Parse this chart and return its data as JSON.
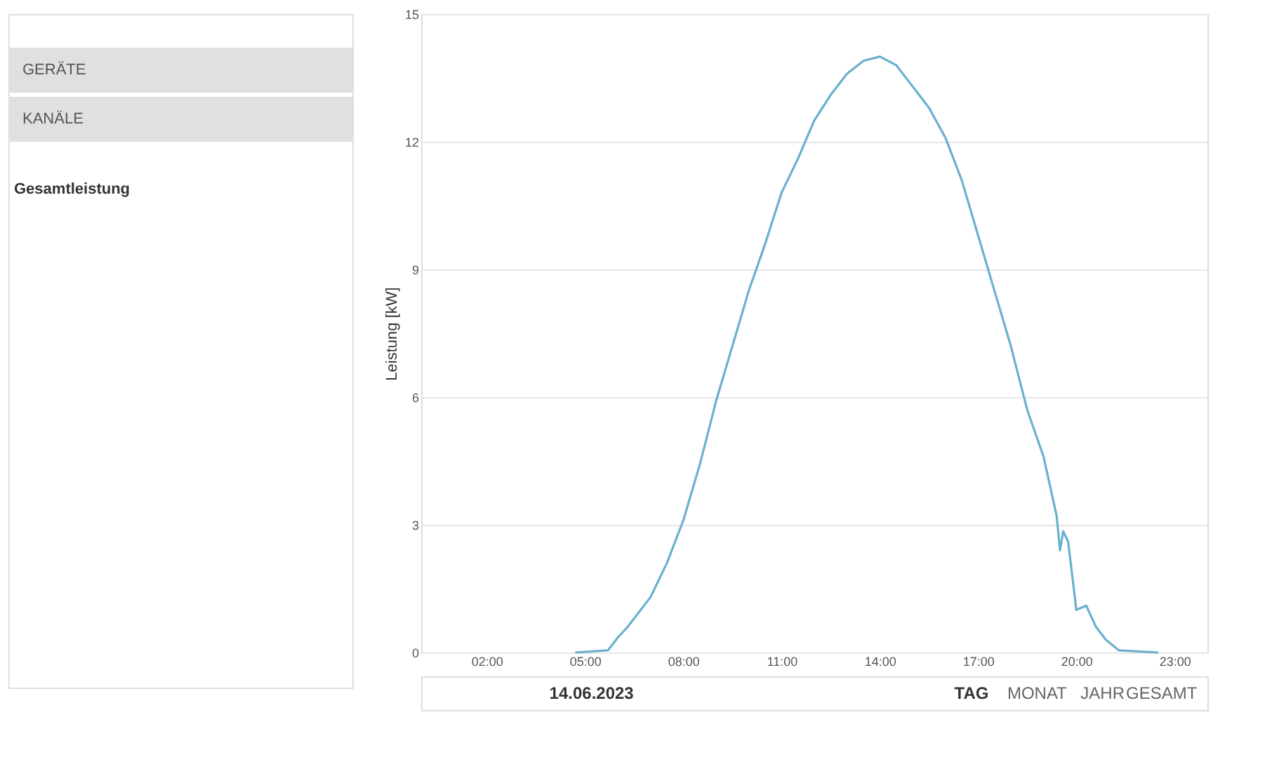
{
  "chart_data": {
    "type": "line",
    "ylabel": "Leistung [kW]",
    "annotations": [
      "GERÄTE",
      "KANÄLE",
      "Gesamtleistung",
      "14.06.2023",
      "TAG",
      "MONAT",
      "JAHR",
      "GESAMT"
    ],
    "xlim": [
      0,
      24
    ],
    "xticks": [
      {
        "value": 2,
        "label": "02:00"
      },
      {
        "value": 5,
        "label": "05:00"
      },
      {
        "value": 8,
        "label": "08:00"
      },
      {
        "value": 11,
        "label": "11:00"
      },
      {
        "value": 14,
        "label": "14:00"
      },
      {
        "value": 17,
        "label": "17:00"
      },
      {
        "value": 20,
        "label": "20:00"
      },
      {
        "value": 23,
        "label": "23:00"
      }
    ],
    "ylim": [
      0,
      15
    ],
    "yticks": [
      0,
      3,
      6,
      9,
      12,
      15
    ],
    "grid": "y",
    "legend": false,
    "marker": "none",
    "line_style": "solid",
    "series": [
      {
        "color": "#6ab0cf",
        "x": [
          4.7,
          5.7,
          6.0,
          6.3,
          6.5,
          7.0,
          7.5,
          8.0,
          8.5,
          9.0,
          9.5,
          10.0,
          10.5,
          11.0,
          11.5,
          12.0,
          12.5,
          13.0,
          13.5,
          14.0,
          14.5,
          15.0,
          15.5,
          16.0,
          16.5,
          17.0,
          17.5,
          18.0,
          18.5,
          19.0,
          19.4,
          19.5,
          19.6,
          19.75,
          20.0,
          20.3,
          20.6,
          20.9,
          21.3,
          22.5
        ],
        "values": [
          0,
          0.05,
          0.35,
          0.6,
          0.8,
          1.3,
          2.1,
          3.1,
          4.4,
          5.9,
          7.2,
          8.5,
          9.6,
          10.8,
          11.6,
          12.5,
          13.1,
          13.6,
          13.9,
          14.0,
          13.8,
          13.3,
          12.8,
          12.1,
          11.1,
          9.8,
          8.5,
          7.2,
          5.7,
          4.6,
          3.2,
          2.4,
          2.85,
          2.6,
          1.0,
          1.1,
          0.6,
          0.3,
          0.05,
          0
        ]
      }
    ]
  }
}
